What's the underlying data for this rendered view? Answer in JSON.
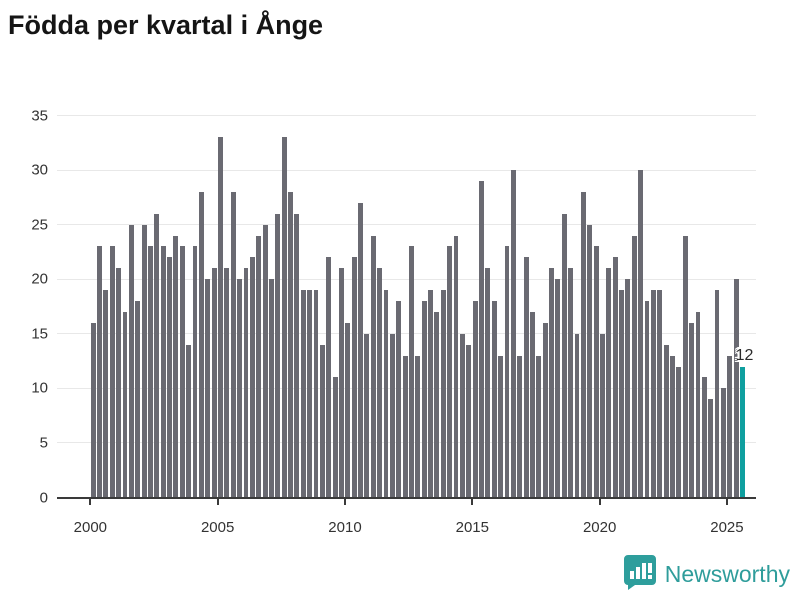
{
  "title": "Födda per kvartal i Ånge",
  "annotation": {
    "text": "12"
  },
  "logo": {
    "text": "Newsworthy"
  },
  "colors": {
    "bar": "#6a6a72",
    "highlight": "#0f9f9f",
    "gridline": "#e8e8e8",
    "axis": "#3a3a3a",
    "brand_teal": "#2f9d9b"
  },
  "chart_data": {
    "type": "bar",
    "title": "Födda per kvartal i Ånge",
    "x_unit": "quarter",
    "start_quarter": "2000 Q1",
    "end_quarter": "2025 Q3",
    "x_tick_labels": [
      "2000",
      "2005",
      "2010",
      "2015",
      "2020",
      "2025"
    ],
    "y_tick_labels": [
      0,
      5,
      10,
      15,
      20,
      25,
      30,
      35
    ],
    "ylim": [
      0,
      35
    ],
    "grid": "horizontal",
    "highlight_last_bar": true,
    "highlight_value_label": "12",
    "values": [
      16,
      23,
      19,
      23,
      21,
      17,
      25,
      18,
      25,
      23,
      26,
      23,
      22,
      24,
      23,
      14,
      23,
      28,
      20,
      21,
      33,
      21,
      28,
      20,
      21,
      22,
      24,
      25,
      20,
      26,
      33,
      28,
      26,
      19,
      19,
      19,
      14,
      22,
      11,
      21,
      16,
      22,
      27,
      15,
      24,
      21,
      19,
      15,
      18,
      13,
      23,
      13,
      18,
      19,
      17,
      19,
      23,
      24,
      15,
      14,
      18,
      29,
      21,
      18,
      13,
      23,
      30,
      13,
      22,
      17,
      13,
      16,
      21,
      20,
      26,
      21,
      15,
      28,
      25,
      23,
      15,
      21,
      22,
      19,
      20,
      24,
      30,
      18,
      19,
      19,
      14,
      13,
      12,
      24,
      16,
      17,
      11,
      9,
      19,
      10,
      13,
      20,
      12
    ]
  }
}
